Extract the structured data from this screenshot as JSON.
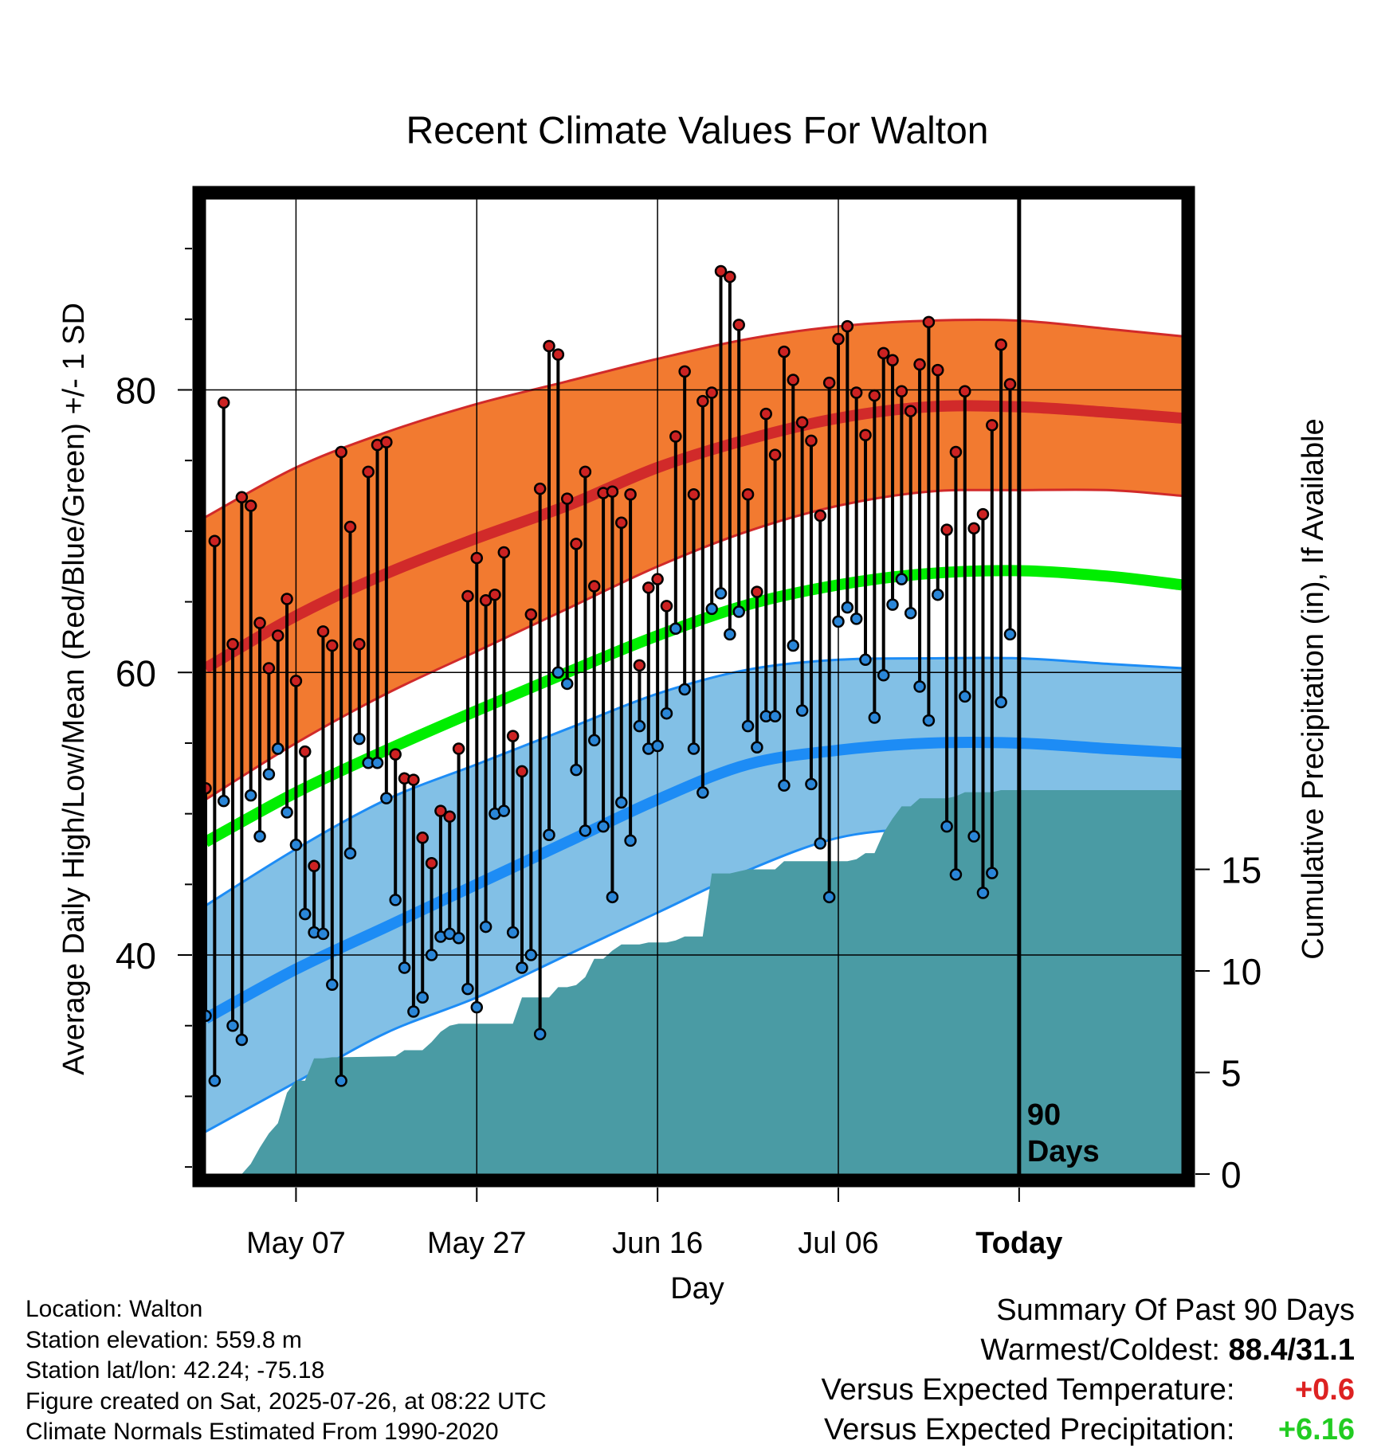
{
  "chart_data": {
    "type": "line",
    "title": "Recent Climate Values For Walton",
    "xlabel": "Day",
    "ylabel": "Average Daily High/Low/Mean (Red/Blue/Green) +/- 1 SD",
    "y2label": "Cumulative Precipitation (in), If Available",
    "x_start": "2025-04-27",
    "x_end": "2025-08-13",
    "ylim": [
      24.5,
      93.5
    ],
    "y2lim": [
      0,
      48
    ],
    "yticks": [
      40,
      60,
      80
    ],
    "y2ticks": [
      0,
      5,
      10,
      15
    ],
    "xtick_dates": [
      "2025-05-07",
      "2025-05-27",
      "2025-06-16",
      "2025-07-06",
      "2025-07-26"
    ],
    "xtick_labels": [
      "May 07",
      "May 27",
      "Jun 16",
      "Jul 06",
      "Today"
    ],
    "today": "2025-07-26",
    "today_label": [
      "90",
      "Days"
    ],
    "grid": true,
    "colors": {
      "high_band": "#f27a30",
      "high_line": "#d12a2a",
      "high_edge": "#d12a2a",
      "low_band": "#82c0e6",
      "low_line": "#1d8cf5",
      "low_edge": "#1d8cf5",
      "mean_line": "#00ee00",
      "precip_fill": "#4a9ba4",
      "high_marker": "#cc2222",
      "low_marker": "#2a86d8"
    },
    "normal_dates": [
      "2025-04-27",
      "2025-05-07",
      "2025-05-17",
      "2025-05-27",
      "2025-06-06",
      "2025-06-16",
      "2025-06-26",
      "2025-07-06",
      "2025-07-16",
      "2025-07-26",
      "2025-08-05",
      "2025-08-13"
    ],
    "normal_high": [
      60.3,
      64.0,
      67.0,
      69.5,
      71.8,
      74.5,
      76.5,
      78.0,
      78.8,
      78.8,
      78.4,
      78.0
    ],
    "normal_high_upper": [
      71.0,
      74.5,
      77.0,
      79.0,
      80.6,
      82.2,
      83.6,
      84.5,
      84.9,
      84.9,
      84.3,
      83.8
    ],
    "normal_high_lower": [
      51.0,
      55.0,
      58.5,
      61.5,
      64.5,
      67.5,
      70.0,
      71.8,
      72.8,
      72.9,
      72.9,
      72.5
    ],
    "normal_low": [
      35.5,
      39.0,
      42.0,
      45.0,
      48.0,
      51.0,
      53.5,
      54.5,
      55.0,
      55.0,
      54.6,
      54.3
    ],
    "normal_low_upper": [
      43.5,
      47.5,
      51.0,
      53.5,
      56.0,
      58.5,
      60.2,
      60.9,
      61.0,
      61.0,
      60.6,
      60.3
    ],
    "normal_low_lower": [
      27.5,
      31.0,
      34.5,
      37.0,
      40.0,
      43.0,
      46.0,
      48.3,
      49.0,
      49.2,
      49.0,
      48.9
    ],
    "normal_mean": [
      48.0,
      51.5,
      54.5,
      57.3,
      60.0,
      62.6,
      64.8,
      66.2,
      67.0,
      67.2,
      66.8,
      66.2
    ],
    "daily_dates": [
      "2025-04-27",
      "2025-04-28",
      "2025-04-29",
      "2025-04-30",
      "2025-05-01",
      "2025-05-02",
      "2025-05-03",
      "2025-05-04",
      "2025-05-05",
      "2025-05-06",
      "2025-05-07",
      "2025-05-08",
      "2025-05-09",
      "2025-05-10",
      "2025-05-11",
      "2025-05-12",
      "2025-05-13",
      "2025-05-14",
      "2025-05-15",
      "2025-05-16",
      "2025-05-17",
      "2025-05-18",
      "2025-05-19",
      "2025-05-20",
      "2025-05-21",
      "2025-05-22",
      "2025-05-23",
      "2025-05-24",
      "2025-05-25",
      "2025-05-26",
      "2025-05-27",
      "2025-05-28",
      "2025-05-29",
      "2025-05-30",
      "2025-05-31",
      "2025-06-01",
      "2025-06-02",
      "2025-06-03",
      "2025-06-04",
      "2025-06-05",
      "2025-06-06",
      "2025-06-07",
      "2025-06-08",
      "2025-06-09",
      "2025-06-10",
      "2025-06-11",
      "2025-06-12",
      "2025-06-13",
      "2025-06-14",
      "2025-06-15",
      "2025-06-16",
      "2025-06-17",
      "2025-06-18",
      "2025-06-19",
      "2025-06-20",
      "2025-06-21",
      "2025-06-22",
      "2025-06-23",
      "2025-06-24",
      "2025-06-25",
      "2025-06-26",
      "2025-06-27",
      "2025-06-28",
      "2025-06-29",
      "2025-06-30",
      "2025-07-01",
      "2025-07-02",
      "2025-07-03",
      "2025-07-04",
      "2025-07-05",
      "2025-07-06",
      "2025-07-07",
      "2025-07-08",
      "2025-07-09",
      "2025-07-10",
      "2025-07-11",
      "2025-07-12",
      "2025-07-13",
      "2025-07-14",
      "2025-07-15",
      "2025-07-16",
      "2025-07-17",
      "2025-07-18",
      "2025-07-19",
      "2025-07-20",
      "2025-07-21",
      "2025-07-22",
      "2025-07-23",
      "2025-07-24",
      "2025-07-25"
    ],
    "daily_high": [
      51.8,
      69.3,
      79.1,
      62.0,
      72.4,
      71.8,
      63.5,
      60.3,
      62.6,
      65.2,
      59.4,
      54.4,
      46.3,
      62.9,
      61.9,
      75.6,
      70.3,
      62.0,
      74.2,
      76.1,
      76.3,
      54.2,
      52.5,
      52.4,
      48.3,
      46.5,
      50.2,
      49.8,
      54.6,
      65.4,
      68.1,
      65.1,
      65.5,
      68.5,
      55.5,
      53.0,
      64.1,
      73.0,
      83.1,
      82.5,
      72.3,
      69.1,
      74.2,
      66.1,
      72.7,
      72.8,
      70.6,
      72.6,
      60.5,
      66.0,
      66.6,
      64.7,
      76.7,
      81.3,
      72.6,
      79.2,
      79.8,
      88.4,
      88.0,
      84.6,
      72.6,
      65.7,
      78.3,
      75.4,
      82.7,
      80.7,
      77.7,
      76.4,
      71.1,
      80.5,
      83.6,
      84.5,
      79.8,
      76.8,
      79.6,
      82.6,
      82.1,
      79.9,
      78.5,
      81.8,
      84.8,
      81.4,
      70.1,
      75.6,
      79.9,
      70.2,
      71.2,
      77.5,
      83.2,
      80.4
    ],
    "daily_low": [
      35.7,
      31.1,
      50.9,
      35.0,
      34.0,
      51.3,
      48.4,
      52.8,
      54.6,
      50.1,
      47.8,
      42.9,
      41.6,
      41.5,
      37.9,
      31.1,
      47.2,
      55.3,
      53.6,
      53.6,
      51.1,
      43.9,
      39.1,
      36.0,
      37.0,
      40.0,
      41.3,
      41.5,
      41.2,
      37.6,
      36.3,
      42.0,
      50.0,
      50.2,
      41.6,
      39.1,
      40.0,
      34.4,
      48.5,
      60.0,
      59.2,
      53.1,
      48.8,
      55.2,
      49.1,
      44.1,
      50.8,
      48.1,
      56.2,
      54.6,
      54.8,
      57.1,
      63.1,
      58.8,
      54.6,
      51.5,
      64.5,
      65.6,
      62.7,
      64.3,
      56.2,
      54.7,
      56.9,
      56.9,
      52.0,
      61.9,
      57.3,
      52.1,
      47.9,
      44.1,
      63.6,
      64.6,
      63.8,
      60.9,
      56.8,
      59.8,
      64.8,
      66.6,
      64.2,
      59.0,
      56.6,
      65.5,
      49.1,
      45.7,
      58.3,
      48.4,
      44.4,
      45.8,
      57.9,
      62.7
    ],
    "precip_dates": [
      "2025-04-27",
      "2025-05-01",
      "2025-05-02",
      "2025-05-03",
      "2025-05-04",
      "2025-05-05",
      "2025-05-06",
      "2025-05-07",
      "2025-05-08",
      "2025-05-09",
      "2025-05-10",
      "2025-05-11",
      "2025-05-12",
      "2025-05-18",
      "2025-05-19",
      "2025-05-20",
      "2025-05-21",
      "2025-05-22",
      "2025-05-23",
      "2025-05-24",
      "2025-05-25",
      "2025-05-26",
      "2025-05-27",
      "2025-05-28",
      "2025-05-29",
      "2025-05-30",
      "2025-05-31",
      "2025-06-01",
      "2025-06-02",
      "2025-06-03",
      "2025-06-04",
      "2025-06-05",
      "2025-06-06",
      "2025-06-07",
      "2025-06-08",
      "2025-06-09",
      "2025-06-10",
      "2025-06-11",
      "2025-06-12",
      "2025-06-13",
      "2025-06-14",
      "2025-06-15",
      "2025-06-16",
      "2025-06-17",
      "2025-06-18",
      "2025-06-19",
      "2025-06-20",
      "2025-06-21",
      "2025-06-22",
      "2025-06-23",
      "2025-06-24",
      "2025-06-25",
      "2025-06-26",
      "2025-06-27",
      "2025-06-28",
      "2025-06-29",
      "2025-06-30",
      "2025-07-01",
      "2025-07-02",
      "2025-07-03",
      "2025-07-04",
      "2025-07-05",
      "2025-07-06",
      "2025-07-07",
      "2025-07-08",
      "2025-07-09",
      "2025-07-10",
      "2025-07-11",
      "2025-07-12",
      "2025-07-13",
      "2025-07-14",
      "2025-07-15",
      "2025-07-16",
      "2025-07-17",
      "2025-07-18",
      "2025-07-19",
      "2025-07-20",
      "2025-07-21",
      "2025-07-22",
      "2025-07-23",
      "2025-07-24",
      "2025-07-25",
      "2025-07-26",
      "2025-08-13"
    ],
    "precip_cum": [
      0,
      0,
      0.5,
      1.3,
      2.0,
      2.5,
      4.0,
      4.6,
      4.6,
      5.7,
      5.7,
      5.75,
      5.75,
      5.8,
      6.1,
      6.1,
      6.1,
      6.5,
      7.0,
      7.3,
      7.4,
      7.4,
      7.4,
      7.4,
      7.4,
      7.4,
      7.4,
      8.7,
      8.7,
      8.7,
      8.7,
      9.2,
      9.2,
      9.3,
      9.7,
      10.6,
      10.6,
      11.0,
      11.3,
      11.3,
      11.3,
      11.4,
      11.4,
      11.4,
      11.5,
      11.7,
      11.7,
      11.7,
      14.8,
      14.8,
      14.8,
      14.9,
      15.0,
      15.0,
      15.0,
      15.0,
      15.4,
      15.4,
      15.4,
      15.4,
      15.4,
      15.4,
      15.4,
      15.4,
      15.5,
      15.8,
      15.8,
      16.8,
      17.5,
      18.1,
      18.1,
      18.5,
      18.5,
      18.5,
      18.5,
      18.6,
      18.8,
      18.8,
      18.8,
      18.8,
      18.9,
      18.9,
      18.9,
      18.9
    ]
  },
  "info": {
    "location": "Location: Walton",
    "elevation": "Station elevation: 559.8 m",
    "latlon": "Station lat/lon: 42.24; -75.18",
    "created": "Figure created on Sat, 2025-07-26, at 08:22 UTC",
    "normals": "Climate Normals Estimated From 1990-2020"
  },
  "summary": {
    "title": "Summary Of Past 90 Days",
    "warmest_coldest_label": "Warmest/Coldest:",
    "warmest_coldest_value": "88.4/31.1",
    "temp_label": "Versus Expected Temperature:",
    "temp_value": "+0.6",
    "temp_color": "#dd2222",
    "precip_label": "Versus Expected Precipitation:",
    "precip_value": "+6.16",
    "precip_color": "#22cc22"
  }
}
